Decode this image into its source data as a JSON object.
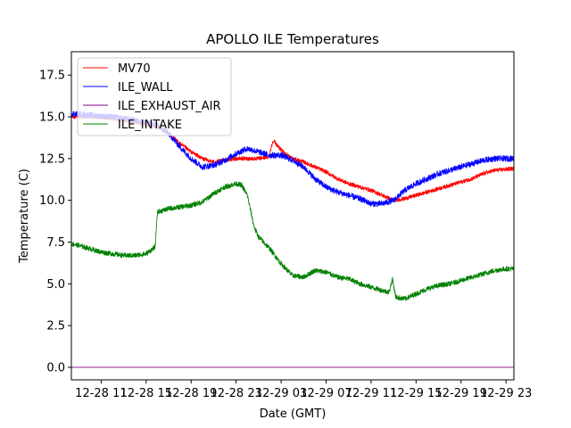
{
  "chart_data": {
    "type": "line",
    "title": "APOLLO ILE Temperatures",
    "xlabel": "Date (GMT)",
    "ylabel": "Temperature (C)",
    "x_unit": "hours since 12-28 00:00 GMT",
    "xlim": [
      8.35,
      47.7
    ],
    "ylim": [
      -0.75,
      18.9
    ],
    "yticks": [
      0.0,
      2.5,
      5.0,
      7.5,
      10.0,
      12.5,
      15.0,
      17.5
    ],
    "ytick_labels": [
      "0.0",
      "2.5",
      "5.0",
      "7.5",
      "10.0",
      "12.5",
      "15.0",
      "17.5"
    ],
    "xticks": [
      11,
      15,
      19,
      23,
      27,
      31,
      35,
      39,
      43,
      47
    ],
    "xtick_labels": [
      "12-28 11",
      "12-28 15",
      "12-28 19",
      "12-28 23",
      "12-29 03",
      "12-29 07",
      "12-29 11",
      "12-29 15",
      "12-29 19",
      "12-29 23"
    ],
    "grid": false,
    "legend_position": "top-left",
    "series": [
      {
        "name": "MV70",
        "color": "#ff0000",
        "noise": 0.12,
        "points": [
          [
            8.35,
            15.0
          ],
          [
            10,
            15.0
          ],
          [
            12,
            14.9
          ],
          [
            14,
            14.7
          ],
          [
            16,
            14.4
          ],
          [
            17,
            14.0
          ],
          [
            18,
            13.4
          ],
          [
            19,
            12.9
          ],
          [
            20,
            12.5
          ],
          [
            21,
            12.3
          ],
          [
            22,
            12.4
          ],
          [
            23,
            12.5
          ],
          [
            24,
            12.5
          ],
          [
            25,
            12.5
          ],
          [
            25.9,
            12.6
          ],
          [
            26.3,
            13.6
          ],
          [
            27,
            13.0
          ],
          [
            28,
            12.5
          ],
          [
            29,
            12.3
          ],
          [
            30,
            12.0
          ],
          [
            31,
            11.7
          ],
          [
            32,
            11.3
          ],
          [
            33,
            11.0
          ],
          [
            34,
            10.8
          ],
          [
            35,
            10.6
          ],
          [
            36,
            10.3
          ],
          [
            37,
            10.0
          ],
          [
            38,
            10.1
          ],
          [
            39,
            10.3
          ],
          [
            40,
            10.5
          ],
          [
            41,
            10.7
          ],
          [
            42,
            10.9
          ],
          [
            43,
            11.1
          ],
          [
            44,
            11.3
          ],
          [
            45,
            11.6
          ],
          [
            46,
            11.8
          ],
          [
            47.7,
            11.9
          ]
        ]
      },
      {
        "name": "ILE_WALL",
        "color": "#0000ff",
        "noise": 0.18,
        "points": [
          [
            8.35,
            15.2
          ],
          [
            10,
            15.1
          ],
          [
            12,
            15.0
          ],
          [
            14,
            14.8
          ],
          [
            16,
            14.5
          ],
          [
            17,
            14.0
          ],
          [
            18,
            13.2
          ],
          [
            19,
            12.5
          ],
          [
            20,
            12.0
          ],
          [
            21,
            12.1
          ],
          [
            22,
            12.4
          ],
          [
            23,
            12.8
          ],
          [
            24,
            13.1
          ],
          [
            25,
            12.9
          ],
          [
            26,
            12.7
          ],
          [
            27,
            12.7
          ],
          [
            28,
            12.4
          ],
          [
            29,
            12.0
          ],
          [
            30,
            11.3
          ],
          [
            31,
            10.8
          ],
          [
            32,
            10.5
          ],
          [
            33,
            10.3
          ],
          [
            34,
            10.1
          ],
          [
            35,
            9.8
          ],
          [
            36,
            9.8
          ],
          [
            37,
            10.0
          ],
          [
            38,
            10.6
          ],
          [
            39,
            11.0
          ],
          [
            40,
            11.3
          ],
          [
            41,
            11.6
          ],
          [
            42,
            11.8
          ],
          [
            43,
            12.0
          ],
          [
            44,
            12.2
          ],
          [
            45,
            12.4
          ],
          [
            46,
            12.5
          ],
          [
            47.7,
            12.5
          ]
        ]
      },
      {
        "name": "ILE_EXHAUST_AIR",
        "color": "#800080",
        "noise": 0,
        "points": [
          [
            8.35,
            0.0
          ],
          [
            47.7,
            0.0
          ]
        ]
      },
      {
        "name": "ILE_INTAKE",
        "color": "#008000",
        "noise": 0.15,
        "points": [
          [
            8.35,
            7.4
          ],
          [
            9,
            7.3
          ],
          [
            10,
            7.1
          ],
          [
            11,
            6.9
          ],
          [
            12,
            6.8
          ],
          [
            13,
            6.7
          ],
          [
            14,
            6.7
          ],
          [
            15,
            6.8
          ],
          [
            15.8,
            7.2
          ],
          [
            16,
            9.3
          ],
          [
            17,
            9.5
          ],
          [
            18,
            9.6
          ],
          [
            19,
            9.7
          ],
          [
            20,
            9.9
          ],
          [
            21,
            10.4
          ],
          [
            22,
            10.8
          ],
          [
            23,
            11.0
          ],
          [
            23.5,
            10.9
          ],
          [
            24,
            10.3
          ],
          [
            24.6,
            8.4
          ],
          [
            25,
            7.8
          ],
          [
            26,
            7.1
          ],
          [
            27,
            6.2
          ],
          [
            28,
            5.5
          ],
          [
            29,
            5.4
          ],
          [
            30,
            5.8
          ],
          [
            31,
            5.7
          ],
          [
            32,
            5.4
          ],
          [
            33,
            5.3
          ],
          [
            34,
            5.0
          ],
          [
            35,
            4.8
          ],
          [
            36,
            4.6
          ],
          [
            36.6,
            4.5
          ],
          [
            36.9,
            5.3
          ],
          [
            37.2,
            4.2
          ],
          [
            38,
            4.1
          ],
          [
            39,
            4.4
          ],
          [
            40,
            4.7
          ],
          [
            41,
            4.9
          ],
          [
            42,
            5.0
          ],
          [
            43,
            5.2
          ],
          [
            44,
            5.4
          ],
          [
            45,
            5.6
          ],
          [
            46,
            5.8
          ],
          [
            47,
            5.9
          ],
          [
            47.7,
            5.9
          ]
        ]
      }
    ]
  }
}
